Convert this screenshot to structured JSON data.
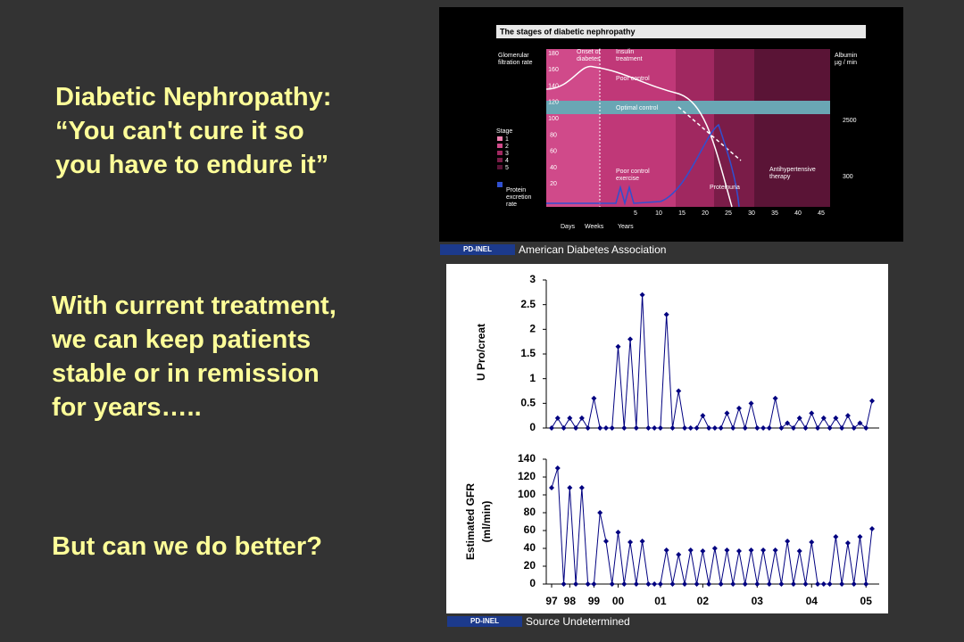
{
  "slide": {
    "title_lines": [
      "Diabetic Nephropathy:",
      "“You can't cure it so",
      "you have to endure it”"
    ],
    "body_lines": [
      "With current treatment,",
      "we can keep patients",
      "stable or in remission",
      "for years….."
    ],
    "question": "But can we do better?",
    "credit_top": {
      "badge": "PD-INEL",
      "text": "American Diabetes Association"
    },
    "credit_bottom": {
      "badge": "PD-INEL",
      "text": "Source Undetermined"
    }
  },
  "figure": {
    "title": "The stages of diabetic nephropathy",
    "labels": [
      "Glomerular",
      "filtration rate",
      "Onset of",
      "diabetes",
      "Insulin",
      "treatment",
      "Poor control",
      "Optimal control",
      "Albumin",
      "µg / min",
      "Stage",
      "1",
      "2",
      "3",
      "4",
      "5",
      "Protein",
      "excretion",
      "rate",
      "Poor control",
      "exercise",
      "Proteinuria",
      "Antihypertensive",
      "therapy",
      "Days",
      "Weeks",
      "Years"
    ],
    "left_ticks": [
      "180",
      "160",
      "140",
      "120",
      "100",
      "80",
      "60",
      "40",
      "20"
    ],
    "right_ticks": [
      "2500",
      "300"
    ],
    "year_ticks": [
      "5",
      "10",
      "15",
      "20",
      "25",
      "30",
      "35",
      "40",
      "45"
    ]
  },
  "chart_data": [
    {
      "type": "line",
      "ylabel": "U Pro/creat",
      "color": "#000080",
      "values": [
        0,
        0.2,
        0,
        0.2,
        0,
        0.2,
        0,
        0.6,
        0,
        0,
        0,
        1.65,
        0,
        1.8,
        0,
        2.7,
        0,
        0,
        0,
        2.3,
        0,
        0.75,
        0,
        0,
        0,
        0.25,
        0,
        0,
        0,
        0.3,
        0,
        0.4,
        0,
        0.5,
        0,
        0,
        0,
        0.6,
        0,
        0.1,
        0,
        0.2,
        0,
        0.3,
        0,
        0.2,
        0,
        0.2,
        0,
        0.25,
        0,
        0.1,
        0,
        0.55
      ],
      "xlim": [
        0,
        53
      ],
      "ylim": [
        0,
        3
      ],
      "yticks": [
        0,
        0.5,
        1,
        1.5,
        2,
        2.5,
        3
      ]
    },
    {
      "type": "line",
      "ylabel_lines": [
        "Estimated GFR",
        "(ml/min)"
      ],
      "color": "#000080",
      "values": [
        108,
        130,
        0,
        108,
        0,
        108,
        0,
        0,
        80,
        48,
        0,
        58,
        0,
        47,
        0,
        48,
        0,
        0,
        0,
        38,
        0,
        33,
        0,
        38,
        0,
        37,
        0,
        40,
        0,
        38,
        0,
        37,
        0,
        38,
        0,
        38,
        0,
        38,
        0,
        48,
        0,
        37,
        0,
        47,
        0,
        0,
        0,
        53,
        0,
        46,
        0,
        53,
        0,
        62
      ],
      "xlim": [
        0,
        53
      ],
      "ylim": [
        0,
        140
      ],
      "yticks": [
        0,
        20,
        40,
        60,
        80,
        100,
        120,
        140
      ],
      "xticks": [
        {
          "value": 0,
          "label": "97"
        },
        {
          "value": 3,
          "label": "98"
        },
        {
          "value": 7,
          "label": "99"
        },
        {
          "value": 11,
          "label": "00"
        },
        {
          "value": 18,
          "label": "01"
        },
        {
          "value": 25,
          "label": "02"
        },
        {
          "value": 34,
          "label": "03"
        },
        {
          "value": 43,
          "label": "04"
        },
        {
          "value": 52,
          "label": "05"
        }
      ]
    }
  ]
}
